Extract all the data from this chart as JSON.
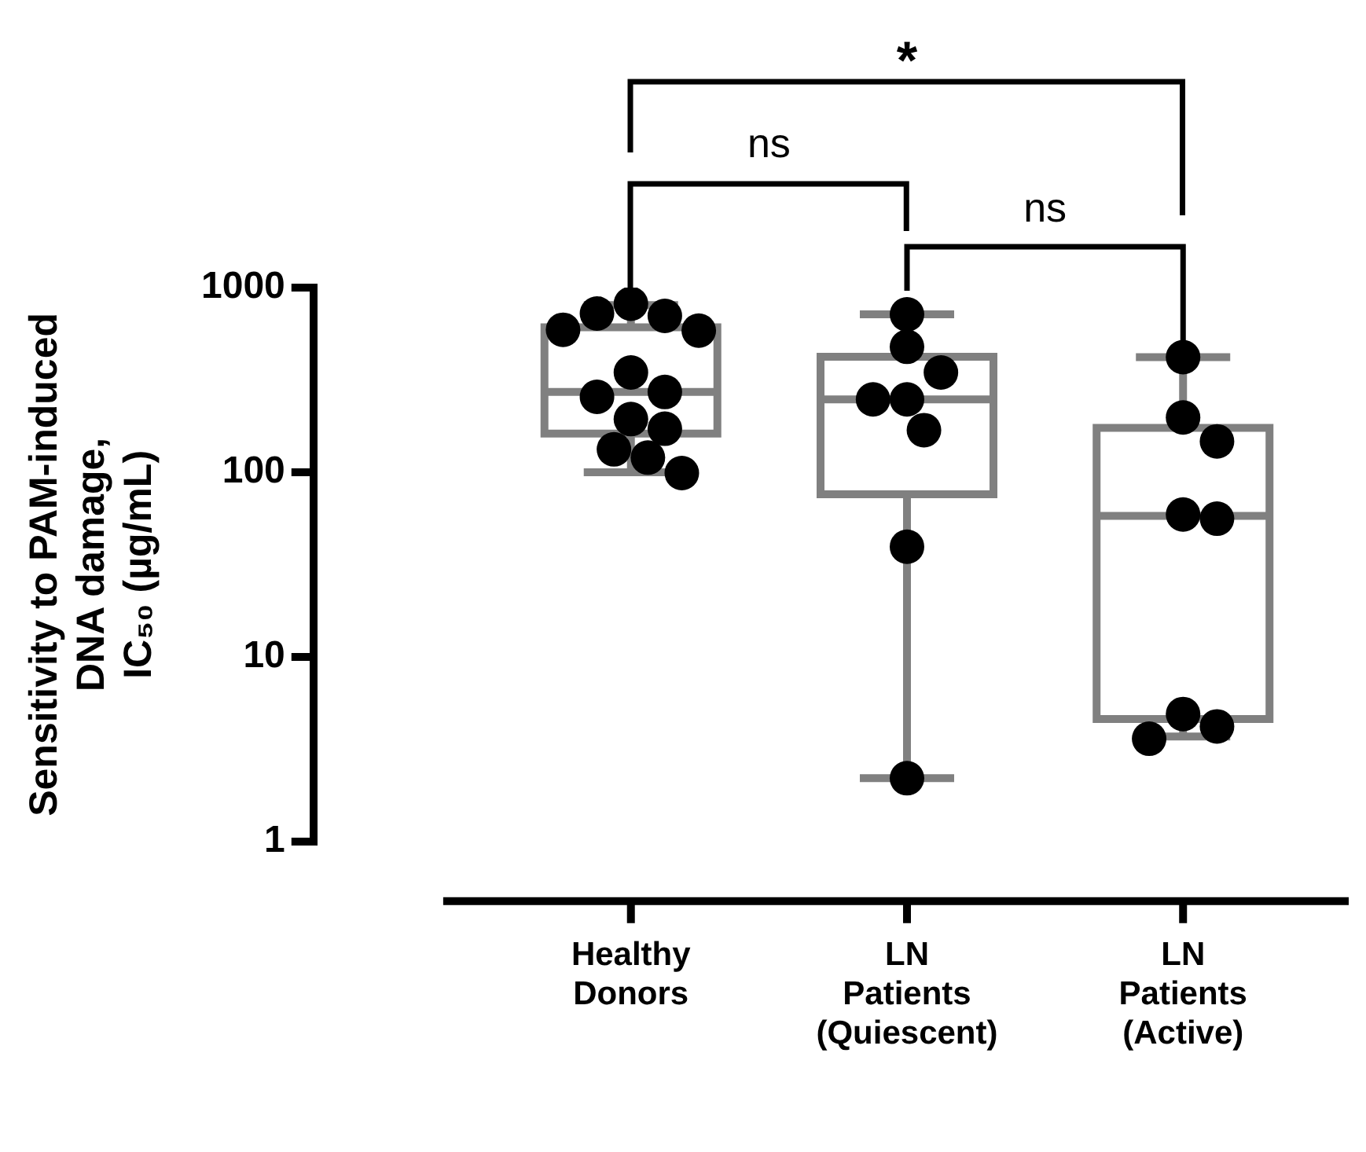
{
  "chart_data": {
    "type": "box",
    "ylabel": "Sensitivity to PAM-induced\nDNA damage,\nIC₅₀ (µg/mL)",
    "categories": [
      "Healthy\nDonors",
      "LN\nPatients\n(Quiescent)",
      "LN\nPatients\n(Active)"
    ],
    "series": [
      {
        "type": "box",
        "color": "#808080",
        "boxes": [
          {
            "low": 100,
            "q1": 162,
            "median": 272,
            "q3": 610,
            "high": 804
          },
          {
            "low": 2.2,
            "q1": 76,
            "median": 248,
            "q3": 422,
            "high": 716
          },
          {
            "low": 3.7,
            "q1": 4.6,
            "median": 58,
            "q3": 174,
            "high": 420
          }
        ]
      },
      {
        "type": "scatter",
        "color": "#000000",
        "x": [
          "Healthy\nDonors",
          "Healthy\nDonors",
          "Healthy\nDonors",
          "Healthy\nDonors",
          "Healthy\nDonors",
          "Healthy\nDonors",
          "Healthy\nDonors",
          "Healthy\nDonors",
          "Healthy\nDonors",
          "Healthy\nDonors",
          "Healthy\nDonors",
          "Healthy\nDonors",
          "Healthy\nDonors",
          "LN\nPatients\n(Quiescent)",
          "LN\nPatients\n(Quiescent)",
          "LN\nPatients\n(Quiescent)",
          "LN\nPatients\n(Quiescent)",
          "LN\nPatients\n(Quiescent)",
          "LN\nPatients\n(Quiescent)",
          "LN\nPatients\n(Quiescent)",
          "LN\nPatients\n(Quiescent)",
          "LN\nPatients\n(Active)",
          "LN\nPatients\n(Active)",
          "LN\nPatients\n(Active)",
          "LN\nPatients\n(Active)",
          "LN\nPatients\n(Active)",
          "LN\nPatients\n(Active)",
          "LN\nPatients\n(Active)",
          "LN\nPatients\n(Active)"
        ],
        "values": [
          818,
          703,
          724,
          585,
          591,
          347,
          272,
          256,
          194,
          172,
          133,
          120,
          99,
          716,
          478,
          347,
          248,
          248,
          169,
          39.5,
          2.2,
          420,
          198,
          147,
          59,
          56,
          4.9,
          4.2,
          3.6
        ]
      }
    ],
    "ylim": [
      1,
      1000
    ],
    "yticks": [
      1,
      10,
      100,
      1000
    ],
    "log": true,
    "grid": false,
    "legend": false,
    "marker": "circle",
    "annotations": [
      "*",
      "ns",
      "ns"
    ]
  }
}
